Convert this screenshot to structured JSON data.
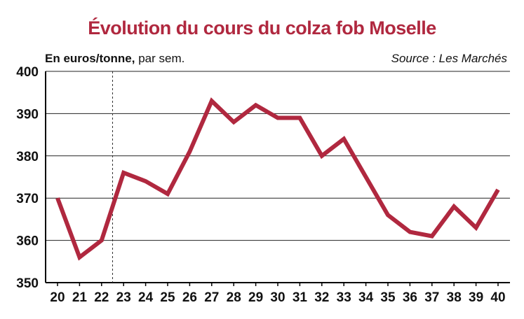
{
  "title": "Évolution du cours du colza fob Moselle",
  "unit_bold": "En euros/tonne,",
  "unit_rest": " par sem.",
  "source": "Source : Les Marchés",
  "colors": {
    "line": "#b0283f",
    "title": "#b0283f",
    "axis": "#000000",
    "grid": "#222222"
  },
  "chart_data": {
    "type": "line",
    "title": "Évolution du cours du colza fob Moselle",
    "ylabel": "En euros/tonne, par sem.",
    "xlabel": "",
    "x": [
      20,
      21,
      22,
      23,
      24,
      25,
      26,
      27,
      28,
      29,
      30,
      31,
      32,
      33,
      34,
      35,
      36,
      37,
      38,
      39,
      40
    ],
    "series": [
      {
        "values": [
          370,
          356,
          360,
          376,
          374,
          371,
          381,
          393,
          388,
          392,
          389,
          389,
          380,
          384,
          375,
          366,
          362,
          361,
          368,
          363,
          372
        ]
      }
    ],
    "ylim": [
      350,
      400
    ],
    "yticks": [
      350,
      360,
      370,
      380,
      390,
      400
    ],
    "grid": true,
    "vertical_marker_x": 22.5
  }
}
